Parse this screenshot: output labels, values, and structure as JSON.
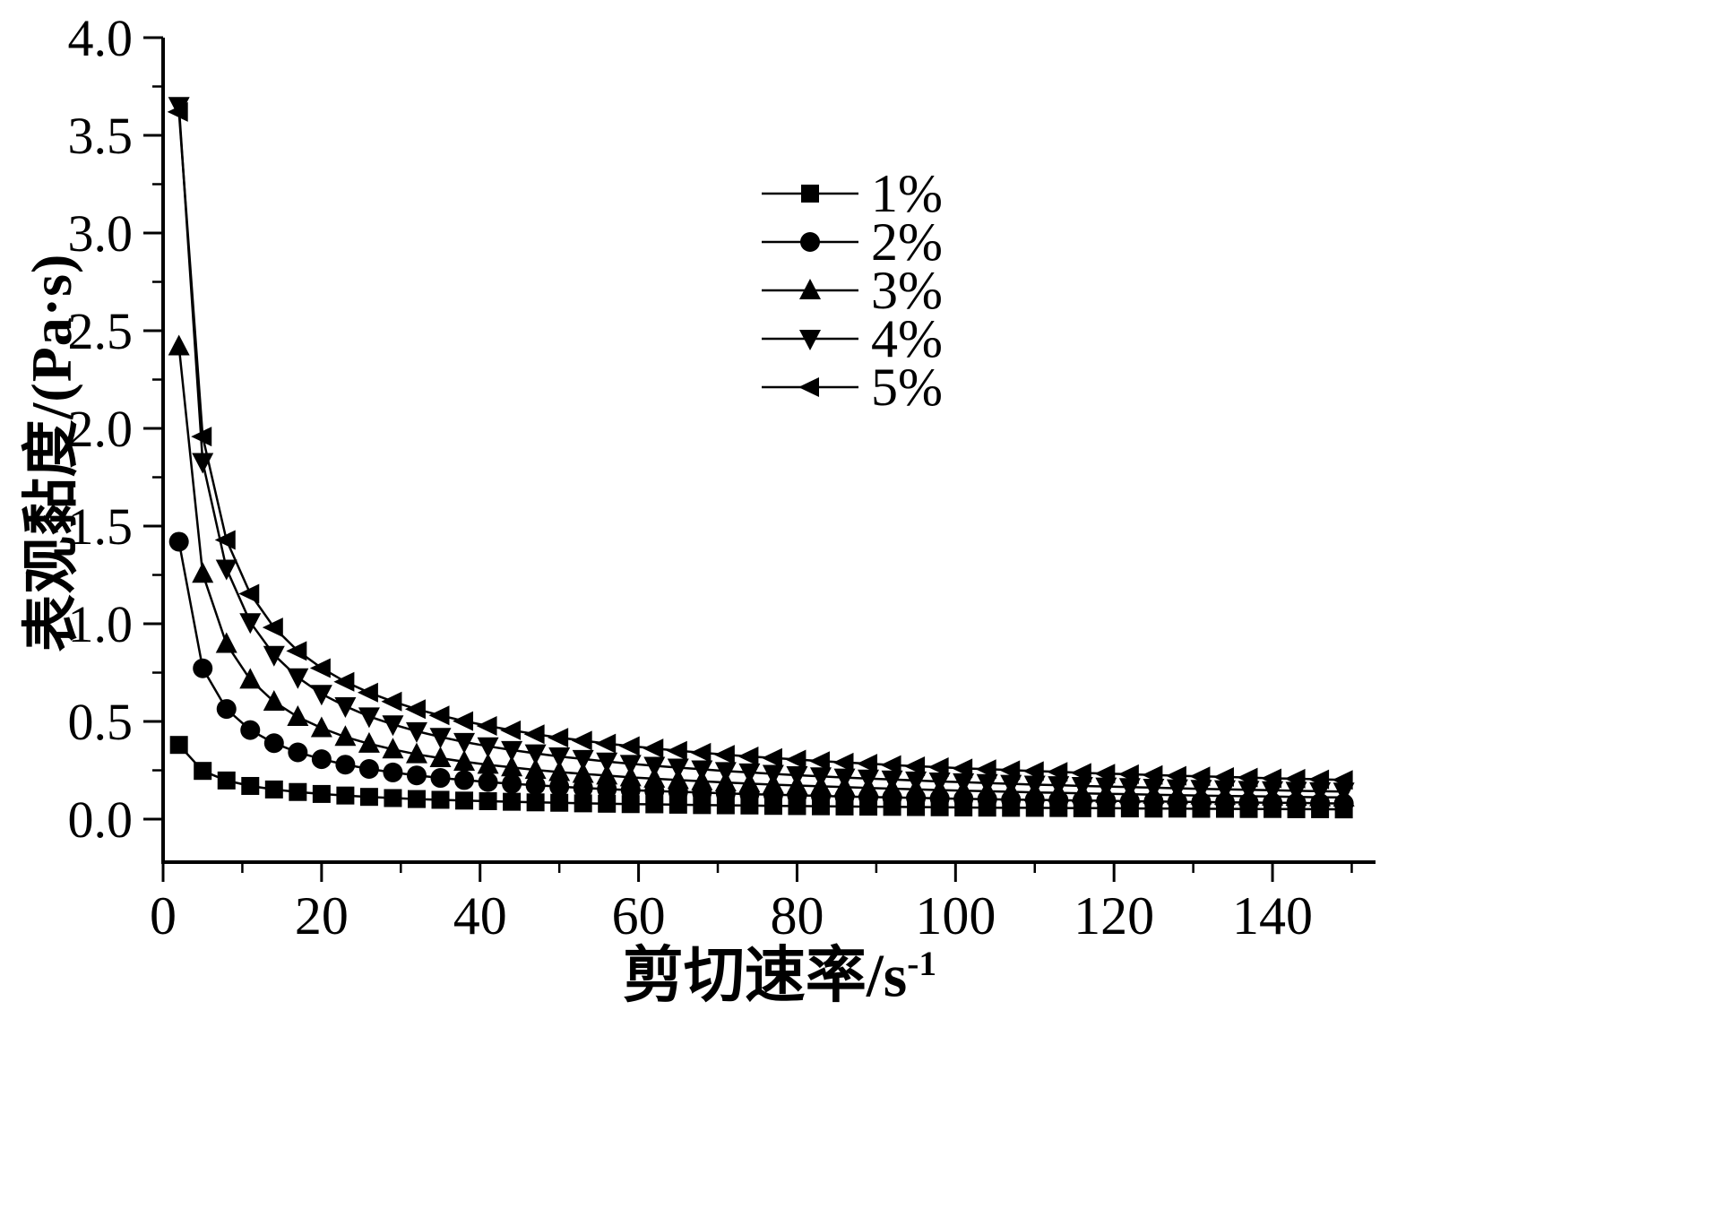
{
  "figure": {
    "ylabel": "表观黏度/(Pa·s)",
    "xlabel_base": "剪切速率/s",
    "xlabel_sup": "-1"
  },
  "chart_data": {
    "type": "line",
    "title": "",
    "xlabel": "剪切速率/s⁻¹",
    "ylabel": "表观黏度/(Pa·s)",
    "xlim": [
      0,
      153
    ],
    "ylim": [
      -0.22,
      4.0
    ],
    "grid": false,
    "legend_position": "upper-center",
    "axis_color": "#000000",
    "xticks": {
      "values": [
        0,
        20,
        40,
        60,
        80,
        100,
        120,
        140
      ],
      "labels": [
        "0",
        "20",
        "40",
        "60",
        "80",
        "100",
        "120",
        "140"
      ],
      "minor_step": 10
    },
    "yticks": {
      "values": [
        0,
        0.5,
        1.0,
        1.5,
        2.0,
        2.5,
        3.0,
        3.5,
        4.0
      ],
      "labels": [
        "0.0",
        "0.5",
        "1.0",
        "1.5",
        "2.0",
        "2.5",
        "3.0",
        "3.5",
        "4.0"
      ],
      "minor_step": 0.25
    },
    "x": [
      2,
      5,
      8,
      11,
      14,
      17,
      20,
      23,
      26,
      29,
      32,
      35,
      38,
      41,
      44,
      47,
      50,
      53,
      56,
      59,
      62,
      65,
      68,
      71,
      74,
      77,
      80,
      83,
      86,
      89,
      92,
      95,
      98,
      101,
      104,
      107,
      110,
      113,
      116,
      119,
      122,
      125,
      128,
      131,
      134,
      137,
      140,
      143,
      146,
      149
    ],
    "series": [
      {
        "name": "1%",
        "marker": "square",
        "color": "#000000",
        "values": [
          0.38,
          0.247,
          0.198,
          0.17,
          0.152,
          0.139,
          0.129,
          0.121,
          0.114,
          0.108,
          0.103,
          0.099,
          0.095,
          0.092,
          0.089,
          0.086,
          0.084,
          0.081,
          0.079,
          0.077,
          0.076,
          0.074,
          0.072,
          0.071,
          0.07,
          0.068,
          0.067,
          0.066,
          0.065,
          0.064,
          0.063,
          0.062,
          0.061,
          0.06,
          0.059,
          0.058,
          0.058,
          0.057,
          0.056,
          0.056,
          0.055,
          0.054,
          0.054,
          0.053,
          0.053,
          0.052,
          0.052,
          0.051,
          0.051,
          0.05
        ]
      },
      {
        "name": "2%",
        "marker": "circle",
        "color": "#000000",
        "values": [
          1.42,
          0.772,
          0.564,
          0.456,
          0.389,
          0.342,
          0.307,
          0.279,
          0.257,
          0.239,
          0.224,
          0.211,
          0.2,
          0.19,
          0.181,
          0.174,
          0.166,
          0.16,
          0.154,
          0.149,
          0.144,
          0.14,
          0.136,
          0.132,
          0.128,
          0.125,
          0.122,
          0.119,
          0.116,
          0.113,
          0.111,
          0.109,
          0.106,
          0.104,
          0.102,
          0.1,
          0.099,
          0.097,
          0.095,
          0.094,
          0.092,
          0.091,
          0.089,
          0.088,
          0.086,
          0.085,
          0.084,
          0.083,
          0.082,
          0.08
        ]
      },
      {
        "name": "3%",
        "marker": "triangle-up",
        "color": "#000000",
        "values": [
          2.42,
          1.256,
          0.897,
          0.714,
          0.601,
          0.523,
          0.466,
          0.421,
          0.386,
          0.357,
          0.332,
          0.312,
          0.294,
          0.278,
          0.265,
          0.252,
          0.241,
          0.232,
          0.223,
          0.214,
          0.207,
          0.2,
          0.194,
          0.188,
          0.182,
          0.177,
          0.172,
          0.168,
          0.164,
          0.16,
          0.156,
          0.153,
          0.149,
          0.146,
          0.143,
          0.14,
          0.137,
          0.135,
          0.132,
          0.13,
          0.128,
          0.125,
          0.123,
          0.121,
          0.119,
          0.117,
          0.116,
          0.114,
          0.112,
          0.111
        ]
      },
      {
        "name": "4%",
        "marker": "triangle-down",
        "color": "#000000",
        "values": [
          3.65,
          1.828,
          1.282,
          1.008,
          0.841,
          0.726,
          0.641,
          0.578,
          0.526,
          0.485,
          0.45,
          0.421,
          0.395,
          0.373,
          0.354,
          0.337,
          0.321,
          0.308,
          0.295,
          0.283,
          0.273,
          0.264,
          0.255,
          0.246,
          0.239,
          0.232,
          0.225,
          0.219,
          0.213,
          0.208,
          0.203,
          0.198,
          0.193,
          0.189,
          0.185,
          0.181,
          0.177,
          0.174,
          0.17,
          0.167,
          0.164,
          0.161,
          0.158,
          0.155,
          0.153,
          0.15,
          0.148,
          0.145,
          0.143,
          0.141
        ]
      },
      {
        "name": "5%",
        "marker": "triangle-left",
        "color": "#000000",
        "values": [
          3.62,
          1.958,
          1.429,
          1.154,
          0.981,
          0.861,
          0.773,
          0.703,
          0.648,
          0.602,
          0.563,
          0.531,
          0.502,
          0.477,
          0.455,
          0.435,
          0.417,
          0.402,
          0.387,
          0.374,
          0.362,
          0.35,
          0.34,
          0.33,
          0.321,
          0.313,
          0.305,
          0.297,
          0.29,
          0.284,
          0.277,
          0.271,
          0.266,
          0.26,
          0.256,
          0.251,
          0.246,
          0.242,
          0.237,
          0.233,
          0.23,
          0.226,
          0.222,
          0.219,
          0.216,
          0.213,
          0.209,
          0.207,
          0.204,
          0.201
        ]
      }
    ]
  }
}
